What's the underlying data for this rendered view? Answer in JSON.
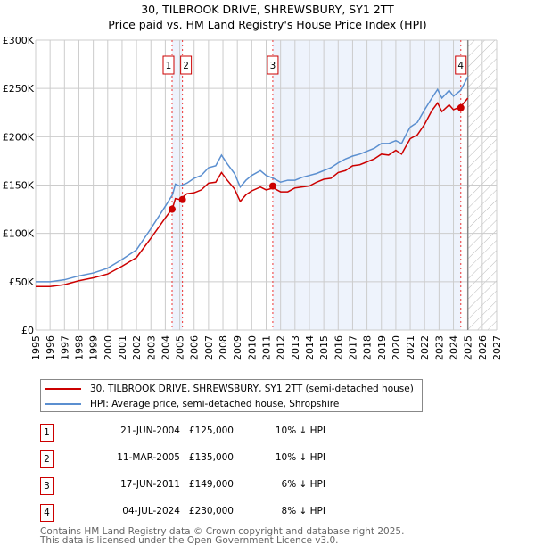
{
  "chart_data": {
    "type": "line",
    "title": "30, TILBROOK DRIVE, SHREWSBURY, SY1 2TT",
    "subtitle": "Price paid vs. HM Land Registry's House Price Index (HPI)",
    "xlim": [
      1995,
      2027
    ],
    "ylim": [
      0,
      300000
    ],
    "x_ticks": [
      "1995",
      "1996",
      "1997",
      "1998",
      "1999",
      "2000",
      "2001",
      "2002",
      "2003",
      "2004",
      "2005",
      "2006",
      "2007",
      "2008",
      "2009",
      "2010",
      "2011",
      "2012",
      "2013",
      "2014",
      "2015",
      "2016",
      "2017",
      "2018",
      "2019",
      "2020",
      "2021",
      "2022",
      "2023",
      "2024",
      "2025",
      "2026",
      "2027"
    ],
    "y_ticks": [
      {
        "v": 0,
        "label": "£0"
      },
      {
        "v": 50000,
        "label": "£50K"
      },
      {
        "v": 100000,
        "label": "£100K"
      },
      {
        "v": 150000,
        "label": "£150K"
      },
      {
        "v": 200000,
        "label": "£200K"
      },
      {
        "v": 250000,
        "label": "£250K"
      },
      {
        "v": 300000,
        "label": "£300K"
      }
    ],
    "grid": true,
    "forecast_start": 2025,
    "x": [
      1995,
      1996,
      1997,
      1998,
      1999,
      2000,
      2001,
      2002,
      2003,
      2004,
      2004.5,
      2004.7,
      2005,
      2005.5,
      2006,
      2006.5,
      2007,
      2007.5,
      2007.9,
      2008.3,
      2008.8,
      2009.2,
      2009.6,
      2010,
      2010.6,
      2011,
      2011.5,
      2012,
      2012.5,
      2013,
      2013.5,
      2014,
      2014.5,
      2015,
      2015.5,
      2016,
      2016.5,
      2017,
      2017.5,
      2018,
      2018.5,
      2019,
      2019.5,
      2020,
      2020.4,
      2020.7,
      2021,
      2021.5,
      2022,
      2022.5,
      2022.9,
      2023.2,
      2023.7,
      2024,
      2024.5,
      2025
    ],
    "series": [
      {
        "name": "30, TILBROOK DRIVE, SHREWSBURY, SY1 2TT (semi-detached house)",
        "color": "#cc0000",
        "values": [
          45,
          45,
          47,
          51,
          54,
          58,
          66,
          75,
          95,
          116,
          126,
          136,
          135,
          141,
          142,
          145,
          152,
          153,
          163,
          155,
          146,
          133,
          140,
          144,
          148,
          145,
          147,
          143,
          143,
          147,
          148,
          149,
          153,
          156,
          157,
          163,
          165,
          170,
          171,
          174,
          177,
          182,
          181,
          186,
          182,
          190,
          198,
          202,
          213,
          227,
          235,
          226,
          233,
          228,
          231,
          240
        ]
      },
      {
        "name": "HPI: Average price, semi-detached house, Shropshire",
        "color": "#5b8fd0",
        "values": [
          50,
          50,
          52,
          56,
          59,
          64,
          73,
          83,
          105,
          128,
          140,
          151,
          149,
          152,
          157,
          160,
          168,
          170,
          181,
          172,
          162,
          148,
          155,
          160,
          165,
          160,
          157,
          153,
          155,
          155,
          158,
          160,
          162,
          165,
          168,
          173,
          177,
          180,
          182,
          185,
          188,
          193,
          193,
          196,
          193,
          202,
          210,
          215,
          228,
          240,
          249,
          240,
          248,
          242,
          248,
          262
        ]
      }
    ],
    "value_unit": "thousand GBP",
    "sales": [
      {
        "id": "1",
        "x": 2004.47,
        "price": 125000,
        "date": "21-JUN-2004",
        "price_label": "£125,000",
        "hpi": "10% ↓ HPI"
      },
      {
        "id": "2",
        "x": 2005.19,
        "price": 135000,
        "date": "11-MAR-2005",
        "price_label": "£135,000",
        "hpi": "10% ↓ HPI"
      },
      {
        "id": "3",
        "x": 2011.46,
        "price": 149000,
        "date": "17-JUN-2011",
        "price_label": "£149,000",
        "hpi": "6% ↓ HPI"
      },
      {
        "id": "4",
        "x": 2024.51,
        "price": 230000,
        "date": "04-JUL-2024",
        "price_label": "£230,000",
        "hpi": "8% ↓ HPI"
      }
    ],
    "shaded": [
      [
        2004.47,
        2005.19
      ],
      [
        2011.46,
        2024.51
      ]
    ]
  },
  "footer": [
    "Contains HM Land Registry data © Crown copyright and database right 2025.",
    "This data is licensed under the Open Government Licence v3.0."
  ]
}
